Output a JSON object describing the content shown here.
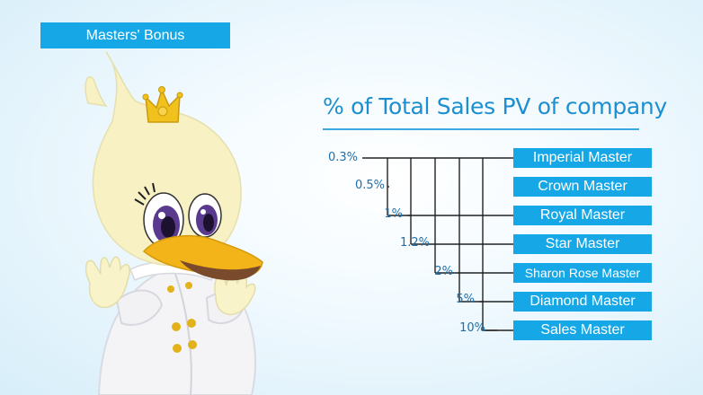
{
  "badge": {
    "label": "Masters' Bonus"
  },
  "title": "% of Total Sales PV of company",
  "colors": {
    "accent": "#16a7e6",
    "title": "#1b8fd0",
    "lines": "#222222"
  },
  "levels": [
    {
      "percent": "0.3%",
      "rank": "Imperial Master"
    },
    {
      "percent": "0.5%",
      "rank": "Crown Master"
    },
    {
      "percent": "1%",
      "rank": "Royal Master"
    },
    {
      "percent": "1.2%",
      "rank": "Star Master"
    },
    {
      "percent": "2%",
      "rank": "Sharon Rose Master"
    },
    {
      "percent": "5%",
      "rank": "Diamond Master"
    },
    {
      "percent": "10%",
      "rank": "Sales Master"
    }
  ]
}
